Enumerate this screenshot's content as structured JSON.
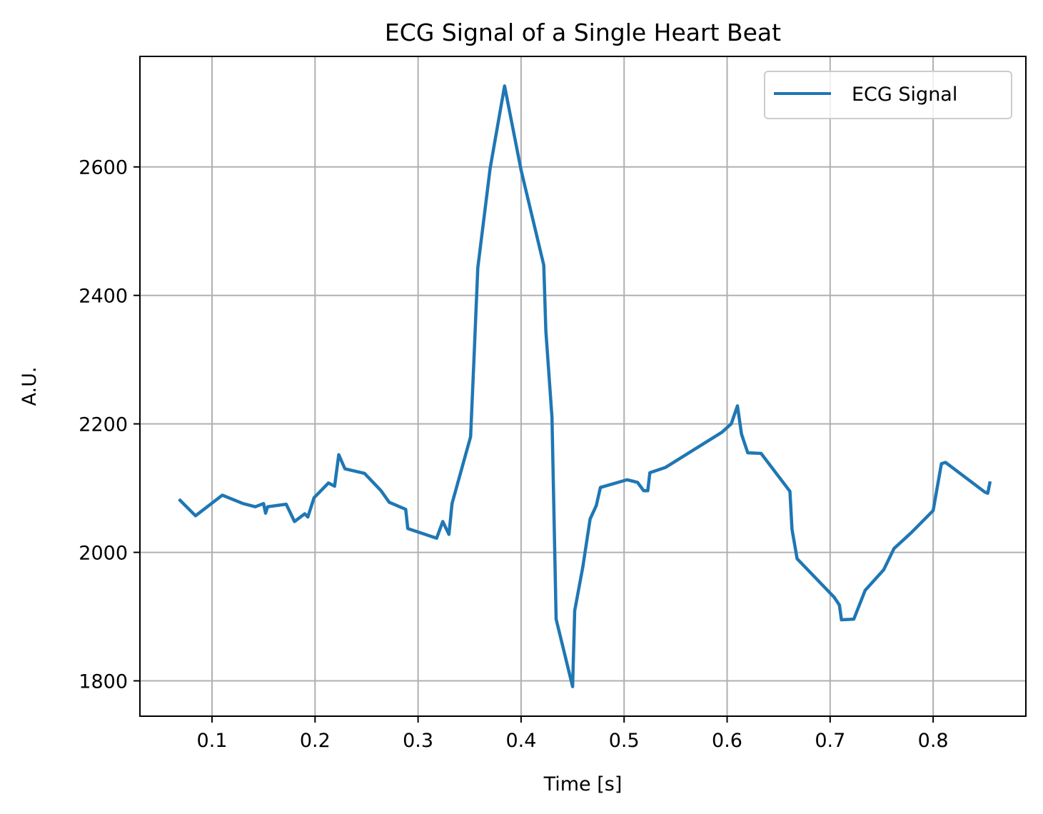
{
  "chart_data": {
    "type": "line",
    "title": "ECG Signal of a Single Heart Beat",
    "xlabel": "Time [s]",
    "ylabel": "A.U.",
    "xlim": [
      0.03,
      0.89
    ],
    "ylim": [
      1745,
      2772
    ],
    "xticks": [
      0.1,
      0.2,
      0.3,
      0.4,
      0.5,
      0.6,
      0.7,
      0.8
    ],
    "xtick_labels": [
      "0.1",
      "0.2",
      "0.3",
      "0.4",
      "0.5",
      "0.6",
      "0.7",
      "0.8"
    ],
    "yticks": [
      1800,
      2000,
      2200,
      2400,
      2600
    ],
    "ytick_labels": [
      "1800",
      "2000",
      "2200",
      "2400",
      "2600"
    ],
    "grid": true,
    "legend_position": "top-right",
    "series": [
      {
        "name": "ECG Signal",
        "color": "#1f77b4",
        "x": [
          0.069,
          0.084,
          0.11,
          0.13,
          0.142,
          0.15,
          0.152,
          0.154,
          0.172,
          0.18,
          0.19,
          0.193,
          0.199,
          0.213,
          0.219,
          0.223,
          0.229,
          0.248,
          0.264,
          0.272,
          0.288,
          0.29,
          0.318,
          0.324,
          0.33,
          0.333,
          0.351,
          0.354,
          0.358,
          0.37,
          0.384,
          0.4,
          0.422,
          0.424,
          0.43,
          0.434,
          0.45,
          0.452,
          0.46,
          0.467,
          0.473,
          0.477,
          0.503,
          0.513,
          0.519,
          0.523,
          0.525,
          0.54,
          0.595,
          0.604,
          0.61,
          0.614,
          0.62,
          0.633,
          0.661,
          0.663,
          0.668,
          0.704,
          0.709,
          0.711,
          0.723,
          0.734,
          0.752,
          0.762,
          0.779,
          0.8,
          0.808,
          0.812,
          0.85,
          0.853,
          0.855
        ],
        "y": [
          2081,
          2057,
          2089,
          2076,
          2071,
          2076,
          2061,
          2071,
          2075,
          2048,
          2060,
          2055,
          2085,
          2108,
          2103,
          2152,
          2130,
          2123,
          2096,
          2078,
          2067,
          2037,
          2022,
          2048,
          2028,
          2076,
          2180,
          2290,
          2443,
          2598,
          2726,
          2595,
          2447,
          2345,
          2210,
          1896,
          1791,
          1909,
          1978,
          2052,
          2073,
          2101,
          2113,
          2109,
          2096,
          2096,
          2124,
          2132,
          2187,
          2200,
          2228,
          2184,
          2155,
          2154,
          2095,
          2036,
          1990,
          1930,
          1918,
          1895,
          1896,
          1941,
          1973,
          2006,
          2031,
          2065,
          2138,
          2140,
          2094,
          2092,
          2108
        ]
      }
    ]
  }
}
